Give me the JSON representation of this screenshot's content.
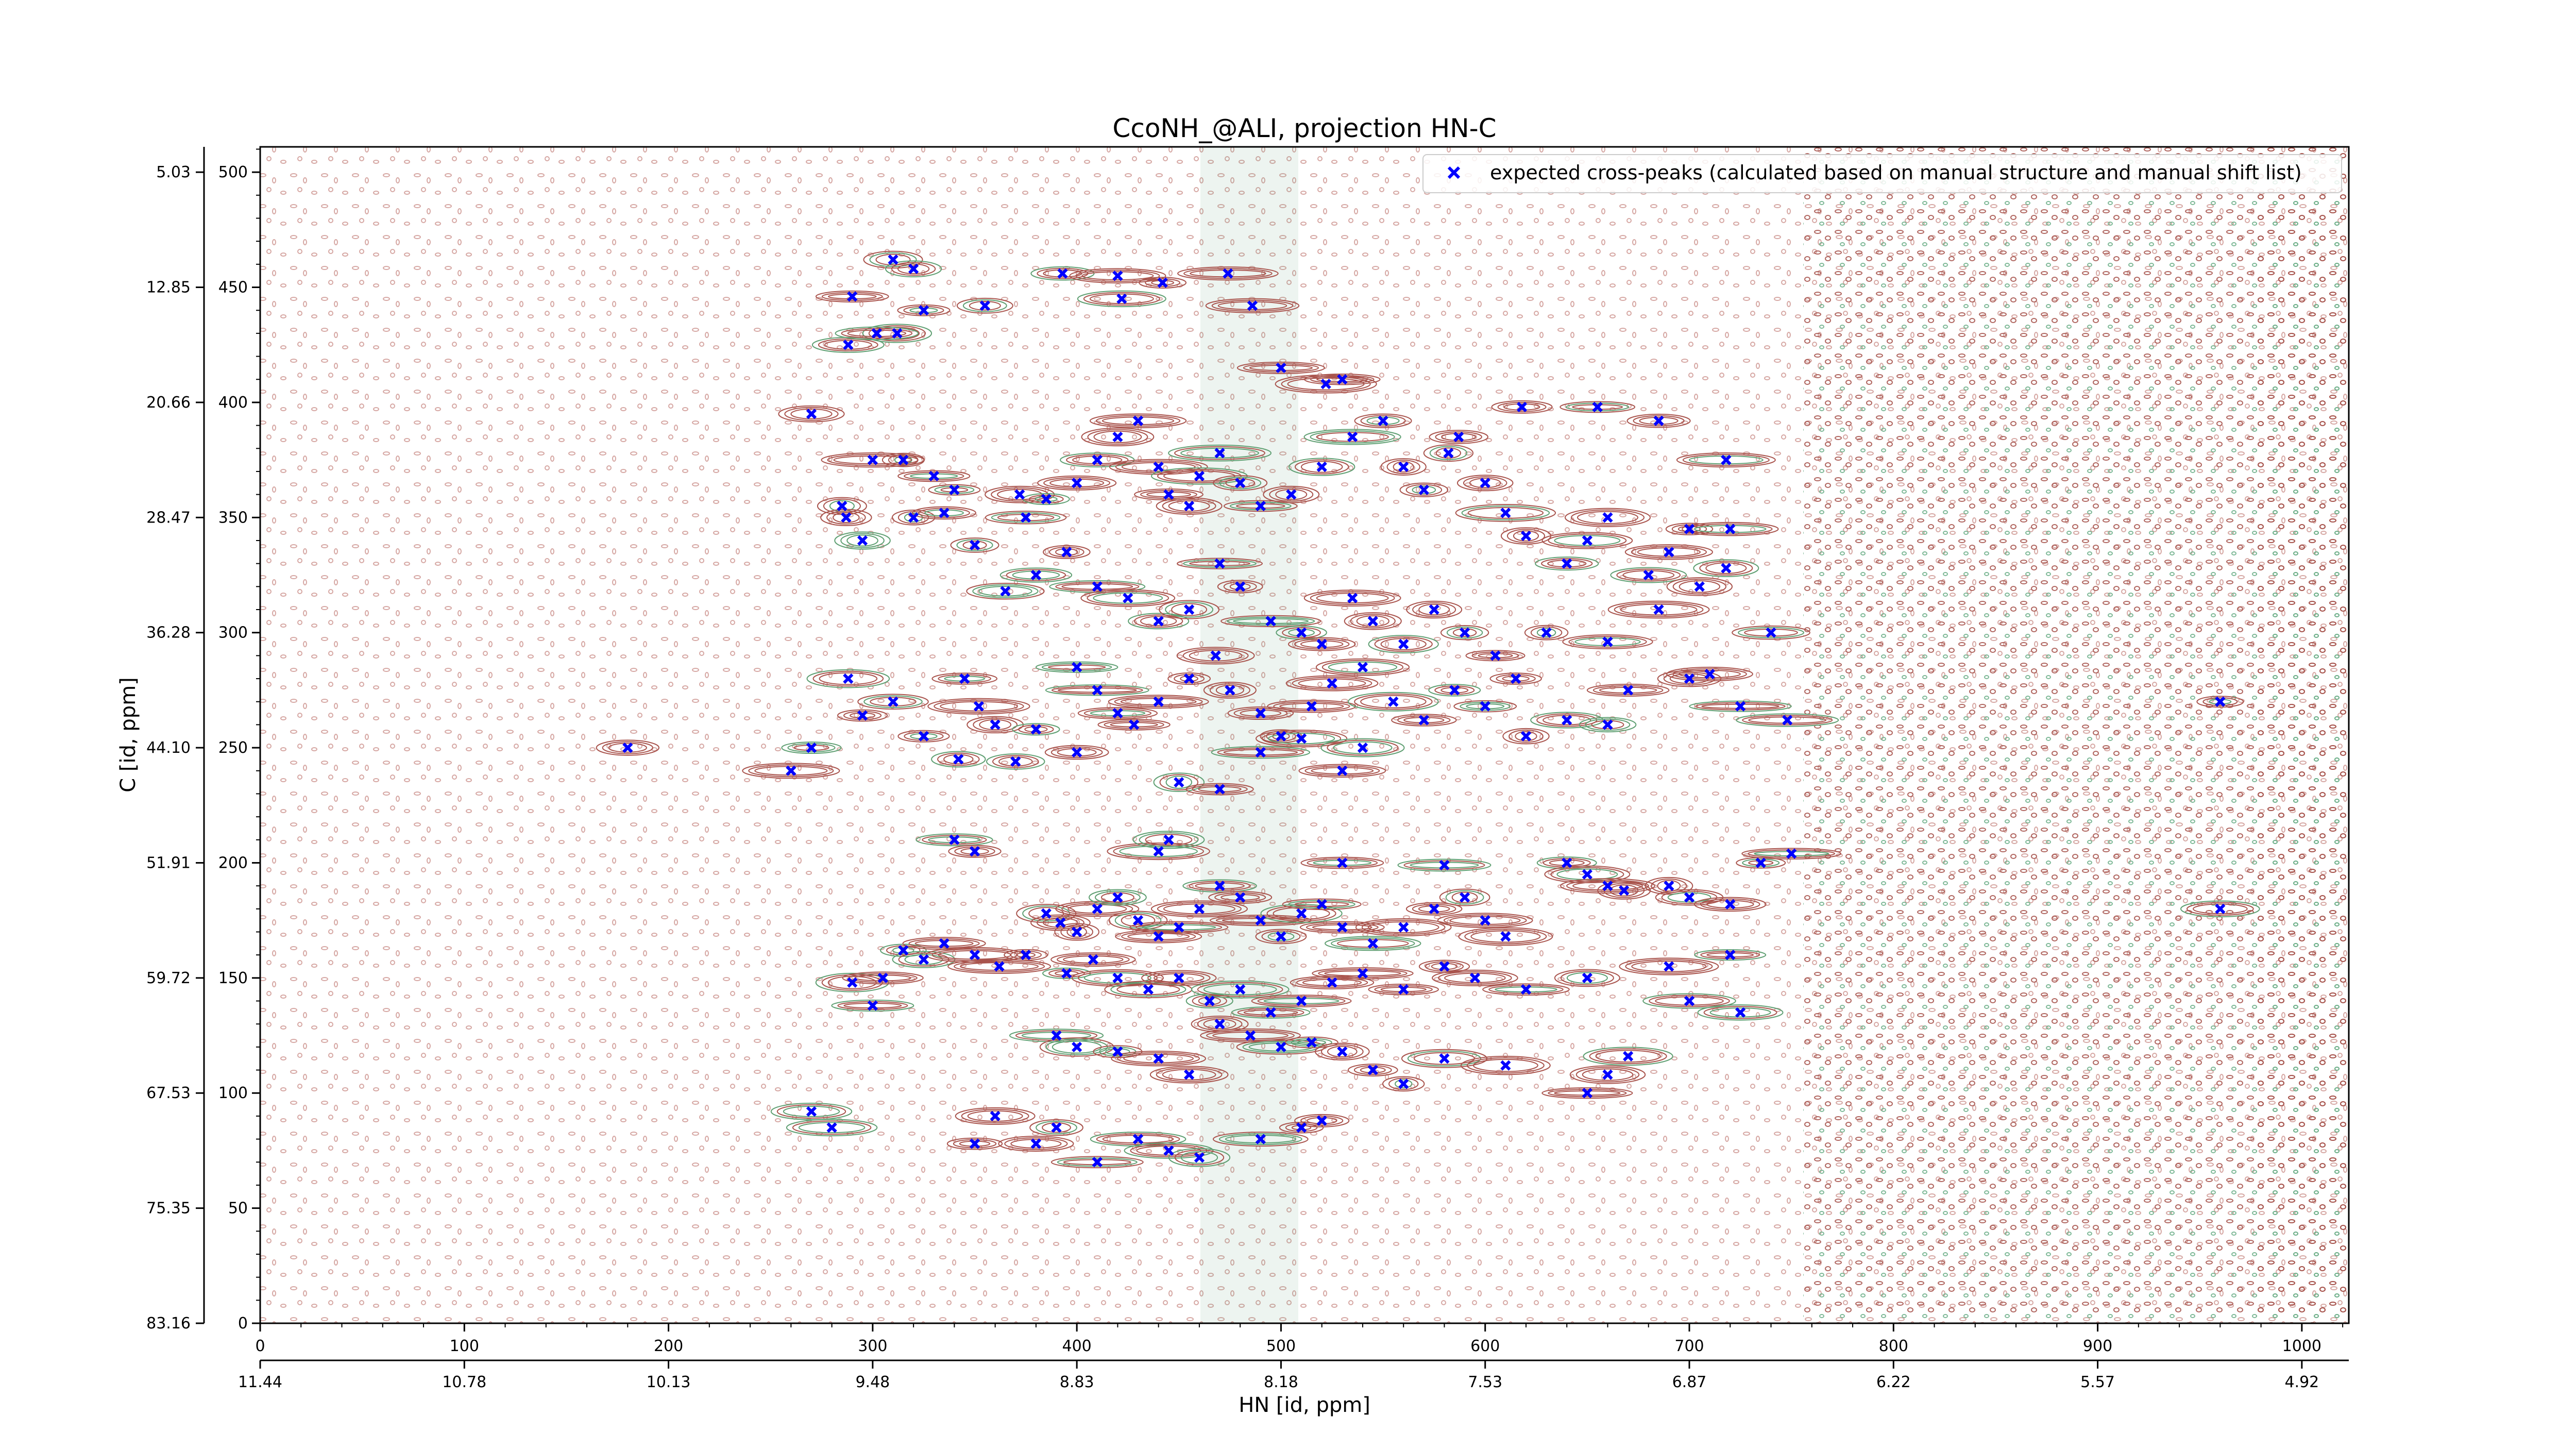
{
  "chart_data": {
    "type": "scatter",
    "title": "CcoNH_@ALI, projection HN-C",
    "xlabel": "HN [id, ppm]",
    "ylabel": "C [id, ppm]",
    "xlim": [
      0,
      1023
    ],
    "ylim": [
      0,
      511
    ],
    "x_ticks_primary": [
      "0",
      "100",
      "200",
      "300",
      "400",
      "500",
      "600",
      "700",
      "800",
      "900",
      "1000"
    ],
    "x_ticks_secondary": [
      "11.44",
      "10.78",
      "10.13",
      "9.48",
      "8.83",
      "8.18",
      "7.53",
      "6.87",
      "6.22",
      "5.57",
      "4.92"
    ],
    "y_ticks_primary": [
      "500",
      "450",
      "400",
      "350",
      "300",
      "250",
      "200",
      "150",
      "100",
      "50",
      "0"
    ],
    "y_ticks_secondary": [
      "5.03",
      "12.85",
      "20.66",
      "28.47",
      "36.28",
      "44.10",
      "51.91",
      "59.72",
      "67.53",
      "75.35",
      "83.16"
    ],
    "legend_position": "top-right",
    "series": [
      {
        "name": "expected cross-peaks (calculated based on manual structure and manual shift list)",
        "color": "#0000ff",
        "marker": "x",
        "points": [
          [
            288,
            425
          ],
          [
            290,
            446
          ],
          [
            310,
            462
          ],
          [
            320,
            458
          ],
          [
            325,
            440
          ],
          [
            312,
            430
          ],
          [
            302,
            430
          ],
          [
            355,
            442
          ],
          [
            393,
            456
          ],
          [
            420,
            455
          ],
          [
            422,
            445
          ],
          [
            442,
            452
          ],
          [
            474,
            456
          ],
          [
            486,
            442
          ],
          [
            500,
            415
          ],
          [
            522,
            408
          ],
          [
            530,
            410
          ],
          [
            270,
            395
          ],
          [
            315,
            375
          ],
          [
            300,
            375
          ],
          [
            285,
            355
          ],
          [
            287,
            350
          ],
          [
            295,
            340
          ],
          [
            320,
            350
          ],
          [
            330,
            368
          ],
          [
            335,
            352
          ],
          [
            340,
            362
          ],
          [
            350,
            338
          ],
          [
            372,
            360
          ],
          [
            375,
            350
          ],
          [
            385,
            358
          ],
          [
            400,
            365
          ],
          [
            410,
            375
          ],
          [
            420,
            385
          ],
          [
            430,
            392
          ],
          [
            440,
            372
          ],
          [
            445,
            360
          ],
          [
            455,
            355
          ],
          [
            460,
            368
          ],
          [
            470,
            378
          ],
          [
            480,
            365
          ],
          [
            490,
            355
          ],
          [
            505,
            360
          ],
          [
            520,
            372
          ],
          [
            535,
            385
          ],
          [
            550,
            392
          ],
          [
            560,
            372
          ],
          [
            570,
            362
          ],
          [
            582,
            378
          ],
          [
            587,
            385
          ],
          [
            600,
            365
          ],
          [
            610,
            352
          ],
          [
            620,
            342
          ],
          [
            640,
            330
          ],
          [
            650,
            340
          ],
          [
            660,
            350
          ],
          [
            680,
            325
          ],
          [
            690,
            335
          ],
          [
            700,
            345
          ],
          [
            718,
            375
          ],
          [
            720,
            345
          ],
          [
            685,
            392
          ],
          [
            655,
            398
          ],
          [
            618,
            398
          ],
          [
            365,
            318
          ],
          [
            380,
            325
          ],
          [
            395,
            335
          ],
          [
            410,
            320
          ],
          [
            425,
            315
          ],
          [
            440,
            305
          ],
          [
            455,
            310
          ],
          [
            470,
            330
          ],
          [
            480,
            320
          ],
          [
            495,
            305
          ],
          [
            510,
            300
          ],
          [
            520,
            295
          ],
          [
            535,
            315
          ],
          [
            545,
            305
          ],
          [
            560,
            295
          ],
          [
            575,
            310
          ],
          [
            590,
            300
          ],
          [
            605,
            290
          ],
          [
            630,
            300
          ],
          [
            660,
            296
          ],
          [
            685,
            310
          ],
          [
            705,
            320
          ],
          [
            718,
            328
          ],
          [
            740,
            300
          ],
          [
            345,
            280
          ],
          [
            352,
            268
          ],
          [
            360,
            260
          ],
          [
            380,
            258
          ],
          [
            400,
            285
          ],
          [
            410,
            275
          ],
          [
            420,
            265
          ],
          [
            428,
            260
          ],
          [
            440,
            270
          ],
          [
            455,
            280
          ],
          [
            468,
            290
          ],
          [
            475,
            275
          ],
          [
            490,
            265
          ],
          [
            500,
            255
          ],
          [
            515,
            268
          ],
          [
            525,
            278
          ],
          [
            540,
            285
          ],
          [
            555,
            270
          ],
          [
            570,
            262
          ],
          [
            585,
            275
          ],
          [
            600,
            268
          ],
          [
            615,
            280
          ],
          [
            620,
            255
          ],
          [
            640,
            262
          ],
          [
            660,
            260
          ],
          [
            670,
            275
          ],
          [
            700,
            280
          ],
          [
            710,
            282
          ],
          [
            725,
            268
          ],
          [
            748,
            262
          ],
          [
            288,
            280
          ],
          [
            295,
            264
          ],
          [
            310,
            270
          ],
          [
            325,
            255
          ],
          [
            342,
            245
          ],
          [
            260,
            240
          ],
          [
            270,
            250
          ],
          [
            370,
            244
          ],
          [
            400,
            248
          ],
          [
            450,
            235
          ],
          [
            470,
            232
          ],
          [
            490,
            248
          ],
          [
            510,
            254
          ],
          [
            530,
            240
          ],
          [
            540,
            250
          ],
          [
            180,
            250
          ],
          [
            640,
            200
          ],
          [
            650,
            195
          ],
          [
            660,
            190
          ],
          [
            668,
            188
          ],
          [
            690,
            190
          ],
          [
            700,
            185
          ],
          [
            720,
            182
          ],
          [
            750,
            204
          ],
          [
            735,
            200
          ],
          [
            385,
            178
          ],
          [
            392,
            174
          ],
          [
            400,
            170
          ],
          [
            410,
            180
          ],
          [
            420,
            185
          ],
          [
            430,
            175
          ],
          [
            440,
            168
          ],
          [
            450,
            172
          ],
          [
            460,
            180
          ],
          [
            470,
            190
          ],
          [
            480,
            185
          ],
          [
            490,
            175
          ],
          [
            500,
            168
          ],
          [
            510,
            178
          ],
          [
            520,
            182
          ],
          [
            530,
            172
          ],
          [
            545,
            165
          ],
          [
            560,
            172
          ],
          [
            575,
            180
          ],
          [
            590,
            185
          ],
          [
            600,
            175
          ],
          [
            610,
            168
          ],
          [
            290,
            148
          ],
          [
            300,
            138
          ],
          [
            305,
            150
          ],
          [
            315,
            162
          ],
          [
            325,
            158
          ],
          [
            335,
            165
          ],
          [
            350,
            160
          ],
          [
            362,
            155
          ],
          [
            375,
            160
          ],
          [
            395,
            152
          ],
          [
            408,
            158
          ],
          [
            420,
            150
          ],
          [
            435,
            145
          ],
          [
            450,
            150
          ],
          [
            465,
            140
          ],
          [
            480,
            145
          ],
          [
            495,
            135
          ],
          [
            510,
            140
          ],
          [
            525,
            148
          ],
          [
            540,
            152
          ],
          [
            560,
            145
          ],
          [
            580,
            155
          ],
          [
            595,
            150
          ],
          [
            620,
            145
          ],
          [
            650,
            150
          ],
          [
            690,
            155
          ],
          [
            700,
            140
          ],
          [
            720,
            160
          ],
          [
            725,
            135
          ],
          [
            390,
            125
          ],
          [
            400,
            120
          ],
          [
            420,
            118
          ],
          [
            440,
            115
          ],
          [
            455,
            108
          ],
          [
            470,
            130
          ],
          [
            485,
            125
          ],
          [
            500,
            120
          ],
          [
            515,
            122
          ],
          [
            530,
            118
          ],
          [
            545,
            110
          ],
          [
            560,
            104
          ],
          [
            580,
            115
          ],
          [
            610,
            112
          ],
          [
            650,
            100
          ],
          [
            660,
            108
          ],
          [
            670,
            116
          ],
          [
            270,
            92
          ],
          [
            280,
            85
          ],
          [
            350,
            78
          ],
          [
            360,
            90
          ],
          [
            380,
            78
          ],
          [
            390,
            85
          ],
          [
            410,
            70
          ],
          [
            430,
            80
          ],
          [
            445,
            75
          ],
          [
            460,
            72
          ],
          [
            490,
            80
          ],
          [
            510,
            85
          ],
          [
            520,
            88
          ],
          [
            960,
            180
          ],
          [
            960,
            270
          ],
          [
            340,
            210
          ],
          [
            350,
            205
          ],
          [
            440,
            205
          ],
          [
            445,
            210
          ],
          [
            530,
            200
          ],
          [
            580,
            199
          ]
        ]
      }
    ]
  }
}
